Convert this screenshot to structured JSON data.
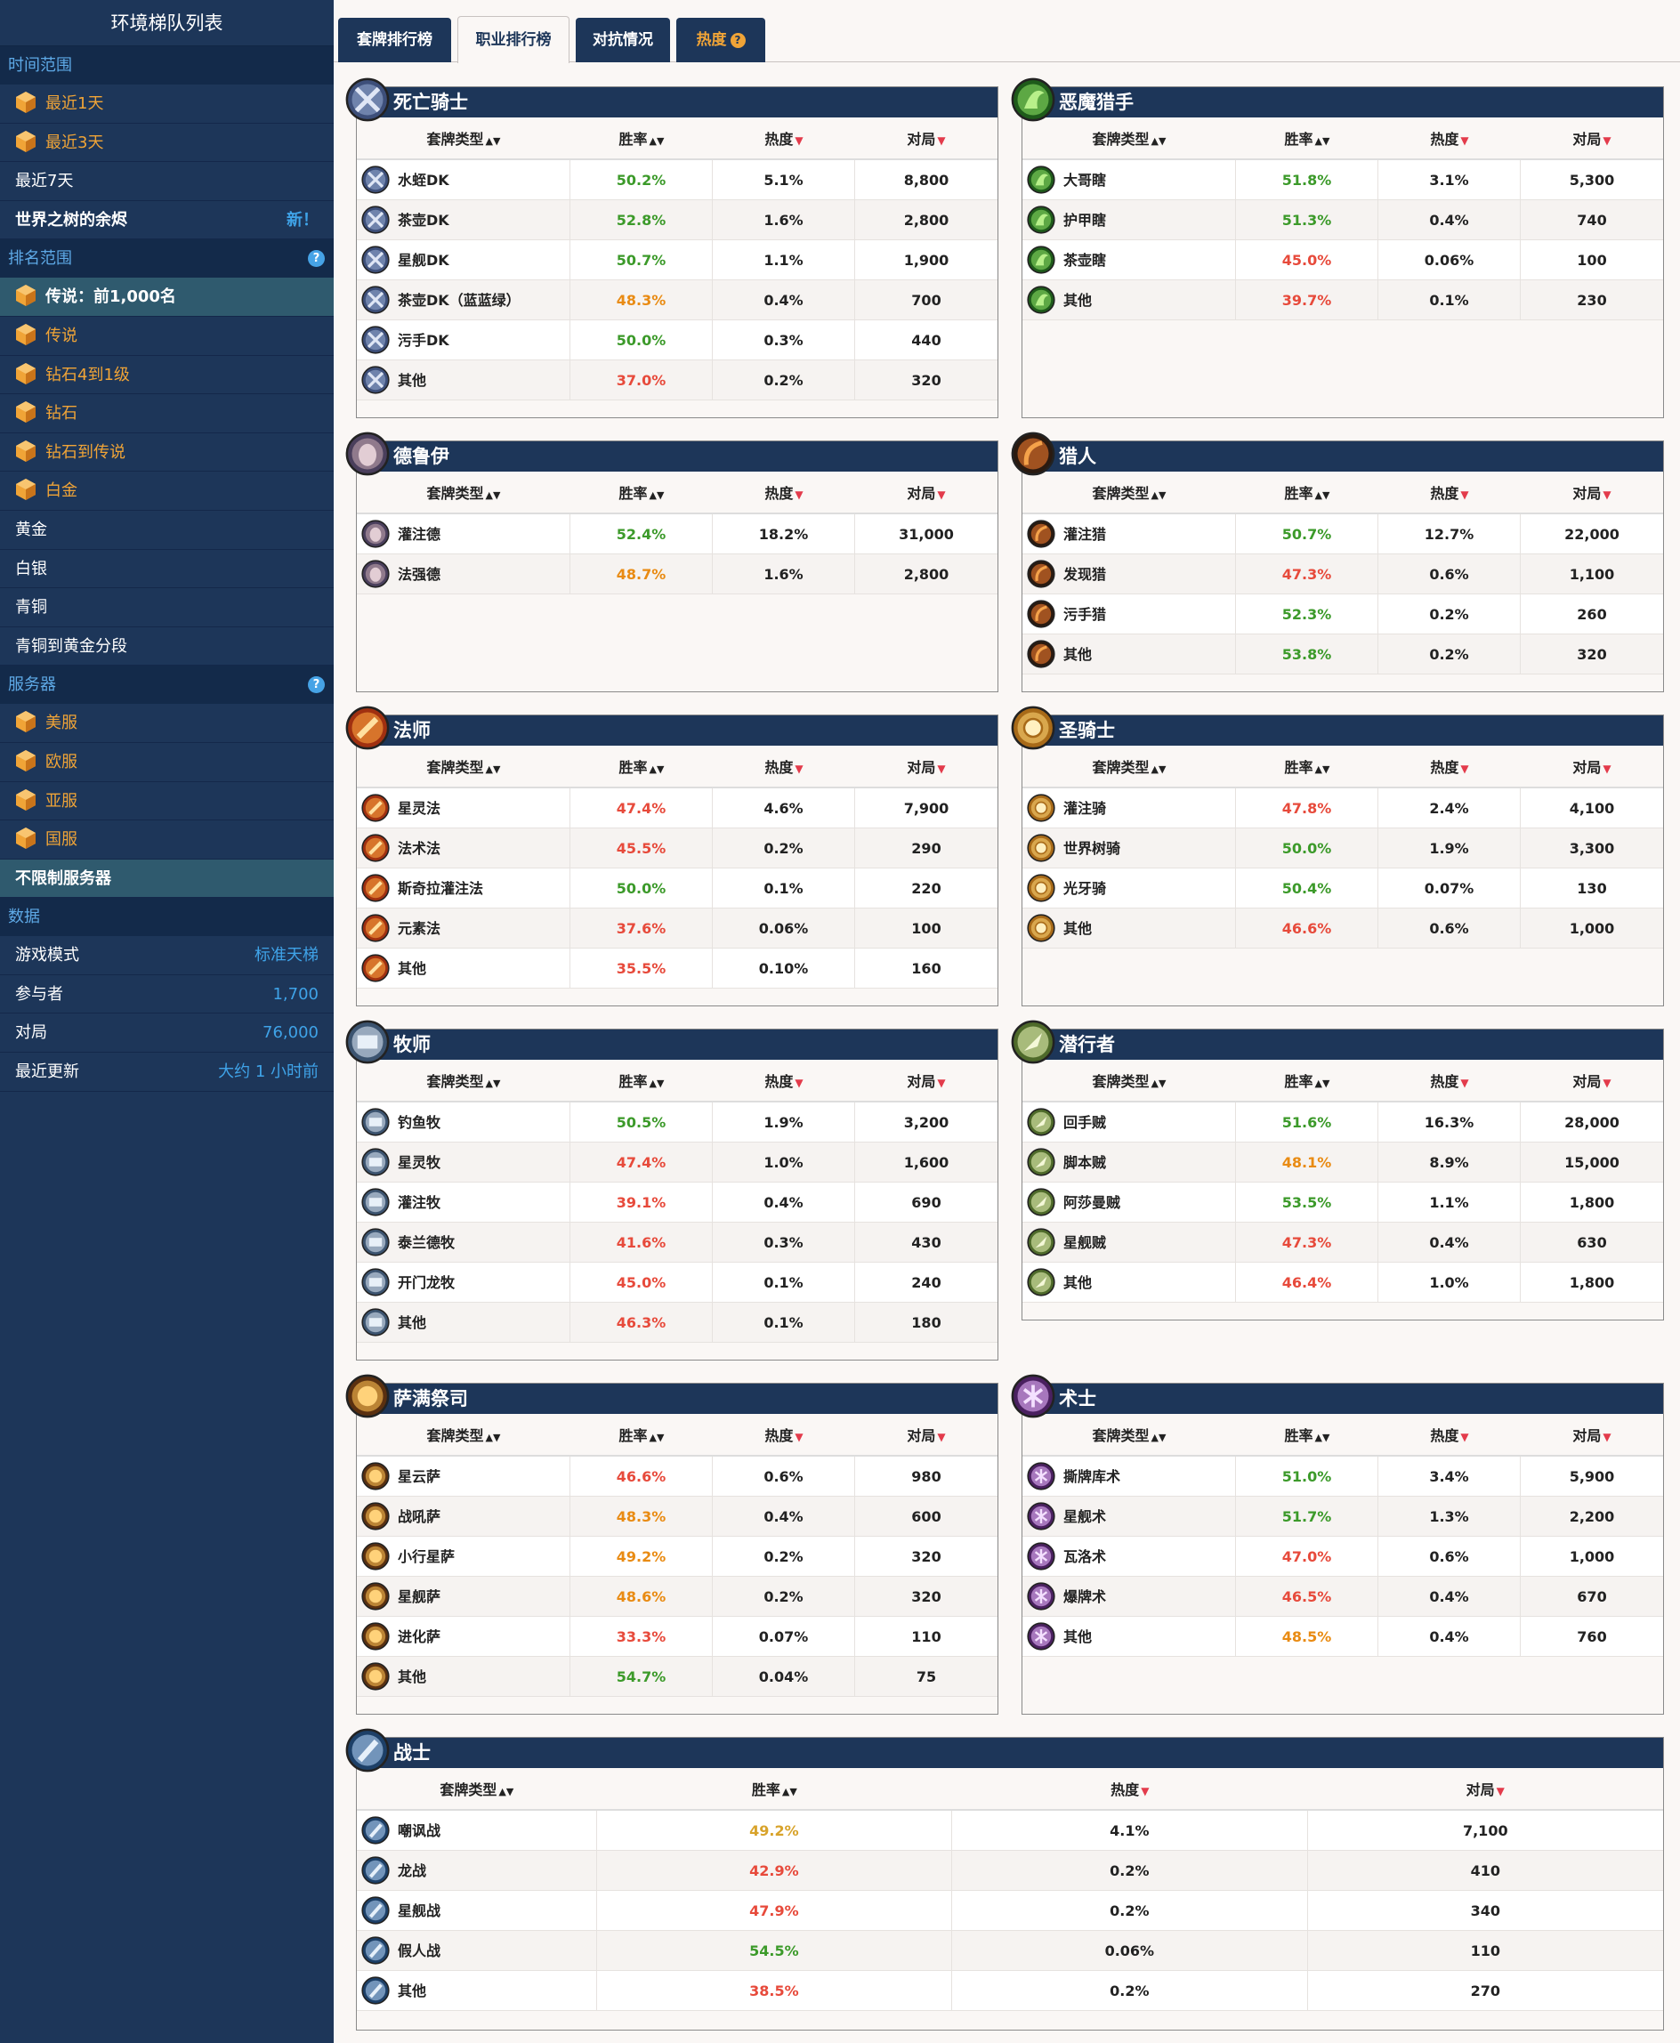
{
  "sidebar": {
    "title": "环境梯队列表",
    "time_section": "时间范围",
    "time_items": [
      "最近1天",
      "最近3天",
      "最近7天"
    ],
    "expansion": {
      "label": "世界之树的余烬",
      "badge": "新！"
    },
    "rank_section": "排名范围",
    "rank_items": [
      "传说：前1,000名",
      "传说",
      "钻石4到1级",
      "钻石",
      "钻石到传说",
      "白金",
      "黄金",
      "白银",
      "青铜",
      "青铜到黄金分段"
    ],
    "server_section": "服务器",
    "server_items": [
      "美服",
      "欧服",
      "亚服",
      "国服",
      "不限制服务器"
    ],
    "data_section": "数据",
    "data_rows": [
      {
        "label": "游戏模式",
        "value": "标准天梯"
      },
      {
        "label": "参与者",
        "value": "1,700"
      },
      {
        "label": "对局",
        "value": "76,000"
      },
      {
        "label": "最近更新",
        "value": "大约 1 小时前"
      }
    ],
    "help_icon": "question-circle-icon",
    "rank_icon": "hexagon-rank-icon"
  },
  "tabs": {
    "deck_rank": "套牌排行榜",
    "class_rank": "职业排行榜",
    "matchups": "对抗情况",
    "popularity": "热度"
  },
  "columns": {
    "archetype": "套牌类型",
    "winrate": "胜率",
    "popularity": "热度",
    "games": "对局"
  },
  "colors": {
    "accent": "#1d3659",
    "win_high": "#3c9a2a",
    "win_mid": "#e98b13",
    "win_low": "#e74a3b"
  },
  "classes": [
    {
      "name": "死亡骑士",
      "icon": "death-knight-icon",
      "rows": [
        {
          "deck": "水蛭DK",
          "wr": "50.2%",
          "pop": "5.1%",
          "games": "8,800"
        },
        {
          "deck": "茶壶DK",
          "wr": "52.8%",
          "pop": "1.6%",
          "games": "2,800"
        },
        {
          "deck": "星舰DK",
          "wr": "50.7%",
          "pop": "1.1%",
          "games": "1,900"
        },
        {
          "deck": "茶壶DK（蓝蓝绿）",
          "wr": "48.3%",
          "pop": "0.4%",
          "games": "700"
        },
        {
          "deck": "污手DK",
          "wr": "50.0%",
          "pop": "0.3%",
          "games": "440"
        },
        {
          "deck": "其他",
          "wr": "37.0%",
          "pop": "0.2%",
          "games": "320"
        }
      ]
    },
    {
      "name": "恶魔猎手",
      "icon": "demon-hunter-icon",
      "rows": [
        {
          "deck": "大哥瞎",
          "wr": "51.8%",
          "pop": "3.1%",
          "games": "5,300"
        },
        {
          "deck": "护甲瞎",
          "wr": "51.3%",
          "pop": "0.4%",
          "games": "740"
        },
        {
          "deck": "茶壶瞎",
          "wr": "45.0%",
          "pop": "0.06%",
          "games": "100"
        },
        {
          "deck": "其他",
          "wr": "39.7%",
          "pop": "0.1%",
          "games": "230"
        }
      ]
    },
    {
      "name": "德鲁伊",
      "icon": "druid-icon",
      "rows": [
        {
          "deck": "灌注德",
          "wr": "52.4%",
          "pop": "18.2%",
          "games": "31,000"
        },
        {
          "deck": "法强德",
          "wr": "48.7%",
          "pop": "1.6%",
          "games": "2,800"
        }
      ]
    },
    {
      "name": "猎人",
      "icon": "hunter-icon",
      "rows": [
        {
          "deck": "灌注猎",
          "wr": "50.7%",
          "pop": "12.7%",
          "games": "22,000"
        },
        {
          "deck": "发现猎",
          "wr": "47.3%",
          "pop": "0.6%",
          "games": "1,100"
        },
        {
          "deck": "污手猎",
          "wr": "52.3%",
          "pop": "0.2%",
          "games": "260"
        },
        {
          "deck": "其他",
          "wr": "53.8%",
          "pop": "0.2%",
          "games": "320"
        }
      ]
    },
    {
      "name": "法师",
      "icon": "mage-icon",
      "rows": [
        {
          "deck": "星灵法",
          "wr": "47.4%",
          "pop": "4.6%",
          "games": "7,900"
        },
        {
          "deck": "法术法",
          "wr": "45.5%",
          "pop": "0.2%",
          "games": "290"
        },
        {
          "deck": "斯奇拉灌注法",
          "wr": "50.0%",
          "pop": "0.1%",
          "games": "220"
        },
        {
          "deck": "元素法",
          "wr": "37.6%",
          "pop": "0.06%",
          "games": "100"
        },
        {
          "deck": "其他",
          "wr": "35.5%",
          "pop": "0.10%",
          "games": "160"
        }
      ]
    },
    {
      "name": "圣骑士",
      "icon": "paladin-icon",
      "rows": [
        {
          "deck": "灌注骑",
          "wr": "47.8%",
          "pop": "2.4%",
          "games": "4,100"
        },
        {
          "deck": "世界树骑",
          "wr": "50.0%",
          "pop": "1.9%",
          "games": "3,300"
        },
        {
          "deck": "光牙骑",
          "wr": "50.4%",
          "pop": "0.07%",
          "games": "130"
        },
        {
          "deck": "其他",
          "wr": "46.6%",
          "pop": "0.6%",
          "games": "1,000"
        }
      ]
    },
    {
      "name": "牧师",
      "icon": "priest-icon",
      "rows": [
        {
          "deck": "钓鱼牧",
          "wr": "50.5%",
          "pop": "1.9%",
          "games": "3,200"
        },
        {
          "deck": "星灵牧",
          "wr": "47.4%",
          "pop": "1.0%",
          "games": "1,600"
        },
        {
          "deck": "灌注牧",
          "wr": "39.1%",
          "pop": "0.4%",
          "games": "690"
        },
        {
          "deck": "泰兰德牧",
          "wr": "41.6%",
          "pop": "0.3%",
          "games": "430"
        },
        {
          "deck": "开门龙牧",
          "wr": "45.0%",
          "pop": "0.1%",
          "games": "240"
        },
        {
          "deck": "其他",
          "wr": "46.3%",
          "pop": "0.1%",
          "games": "180"
        }
      ]
    },
    {
      "name": "潜行者",
      "icon": "rogue-icon",
      "rows": [
        {
          "deck": "回手贼",
          "wr": "51.6%",
          "pop": "16.3%",
          "games": "28,000"
        },
        {
          "deck": "脚本贼",
          "wr": "48.1%",
          "pop": "8.9%",
          "games": "15,000"
        },
        {
          "deck": "阿莎曼贼",
          "wr": "53.5%",
          "pop": "1.1%",
          "games": "1,800"
        },
        {
          "deck": "星舰贼",
          "wr": "47.3%",
          "pop": "0.4%",
          "games": "630"
        },
        {
          "deck": "其他",
          "wr": "46.4%",
          "pop": "1.0%",
          "games": "1,800"
        }
      ]
    },
    {
      "name": "萨满祭司",
      "icon": "shaman-icon",
      "rows": [
        {
          "deck": "星云萨",
          "wr": "46.6%",
          "pop": "0.6%",
          "games": "980"
        },
        {
          "deck": "战吼萨",
          "wr": "48.3%",
          "pop": "0.4%",
          "games": "600"
        },
        {
          "deck": "小行星萨",
          "wr": "49.2%",
          "pop": "0.2%",
          "games": "320"
        },
        {
          "deck": "星舰萨",
          "wr": "48.6%",
          "pop": "0.2%",
          "games": "320"
        },
        {
          "deck": "进化萨",
          "wr": "33.3%",
          "pop": "0.07%",
          "games": "110"
        },
        {
          "deck": "其他",
          "wr": "54.7%",
          "pop": "0.04%",
          "games": "75"
        }
      ]
    },
    {
      "name": "术士",
      "icon": "warlock-icon",
      "rows": [
        {
          "deck": "撕牌库术",
          "wr": "51.0%",
          "pop": "3.4%",
          "games": "5,900"
        },
        {
          "deck": "星舰术",
          "wr": "51.7%",
          "pop": "1.3%",
          "games": "2,200"
        },
        {
          "deck": "瓦洛术",
          "wr": "47.0%",
          "pop": "0.6%",
          "games": "1,000"
        },
        {
          "deck": "爆牌术",
          "wr": "46.5%",
          "pop": "0.4%",
          "games": "670"
        },
        {
          "deck": "其他",
          "wr": "48.5%",
          "pop": "0.4%",
          "games": "760"
        }
      ]
    },
    {
      "name": "战士",
      "icon": "warrior-icon",
      "rows": [
        {
          "deck": "嘲讽战",
          "wr": "49.2%",
          "pop": "4.1%",
          "games": "7,100"
        },
        {
          "deck": "龙战",
          "wr": "42.9%",
          "pop": "0.2%",
          "games": "410"
        },
        {
          "deck": "星舰战",
          "wr": "47.9%",
          "pop": "0.2%",
          "games": "340"
        },
        {
          "deck": "假人战",
          "wr": "54.5%",
          "pop": "0.06%",
          "games": "110"
        },
        {
          "deck": "其他",
          "wr": "38.5%",
          "pop": "0.2%",
          "games": "270"
        }
      ]
    }
  ]
}
